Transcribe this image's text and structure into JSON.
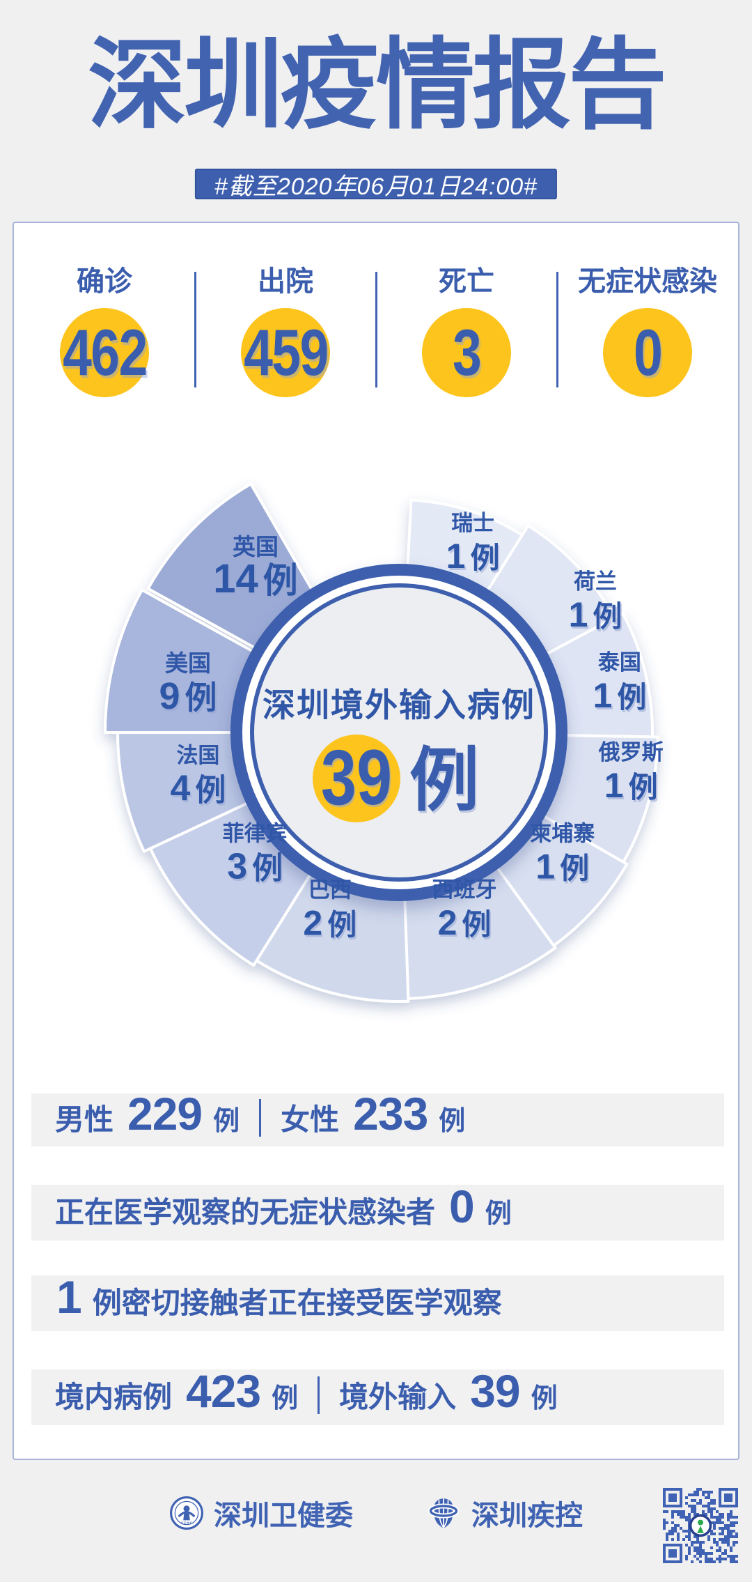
{
  "page_title": "深圳疫情报告",
  "subtitle_badge": "#截至2020年06月01日24:00#",
  "colors": {
    "brand_blue": "#3d5fae",
    "number_blue": "#3a5dad",
    "accent_yellow": "#fcc41d",
    "card_border": "#a9b4d8",
    "page_bg": "#f0f0f1",
    "row_bg": "#f1f1f2",
    "slice_label_blue": "#2f56a7",
    "qr_blue": "#3f62b5"
  },
  "summary_stats": [
    {
      "label": "确诊",
      "value": "462"
    },
    {
      "label": "出院",
      "value": "459"
    },
    {
      "label": "死亡",
      "value": "3"
    },
    {
      "label": "无症状感染",
      "value": "0"
    }
  ],
  "chart_data": {
    "type": "pie",
    "title": "深圳境外输入病例",
    "total": {
      "value": "39",
      "unit": "例"
    },
    "unit": "例",
    "legend_position": "labels-on-slices",
    "slices": [
      {
        "label": "瑞士",
        "value": 1,
        "color": "#e4e9f6",
        "start": 3,
        "end": 32,
        "r": 334,
        "la": 21.3,
        "lr": 292,
        "vs": 50,
        "ns": 31,
        "explode": 0
      },
      {
        "label": "荷兰",
        "value": 1,
        "color": "#e1e6f4",
        "start": 32,
        "end": 62,
        "r": 350,
        "la": 56.3,
        "lr": 339,
        "vs": 50,
        "ns": 31,
        "explode": 0
      },
      {
        "label": "泰国",
        "value": 1,
        "color": "#dee4f3",
        "start": 62,
        "end": 91,
        "r": 364,
        "la": 77.2,
        "lr": 325,
        "vs": 50,
        "ns": 31,
        "explode": 0
      },
      {
        "label": "俄罗斯",
        "value": 1,
        "color": "#dbe1f1",
        "start": 91,
        "end": 120,
        "r": 372,
        "la": 99.7,
        "lr": 338,
        "vs": 50,
        "ns": 31,
        "explode": 0
      },
      {
        "label": "柬埔寨",
        "value": 1,
        "color": "#d8dff0",
        "start": 120,
        "end": 144,
        "r": 378,
        "la": 126.5,
        "lr": 292,
        "vs": 50,
        "ns": 31,
        "explode": 0
      },
      {
        "label": "西班牙",
        "value": 2,
        "color": "#d4dcee",
        "start": 144,
        "end": 178,
        "r": 382,
        "la": 159.7,
        "lr": 271,
        "vs": 50,
        "ns": 31,
        "explode": 0
      },
      {
        "label": "巴西",
        "value": 2,
        "color": "#d0d8ec",
        "start": 178,
        "end": 212,
        "r": 386,
        "la": 201.3,
        "lr": 273,
        "vs": 50,
        "ns": 31,
        "explode": 0
      },
      {
        "label": "菲律宾",
        "value": 3,
        "color": "#c6cfe9",
        "start": 212,
        "end": 245,
        "r": 394,
        "la": 230,
        "lr": 270,
        "vs": 52,
        "ns": 31,
        "explode": 0
      },
      {
        "label": "法国",
        "value": 4,
        "color": "#bbc6e4",
        "start": 245,
        "end": 270,
        "r": 404,
        "la": 258,
        "lr": 295,
        "vs": 52,
        "ns": 31,
        "explode": 0
      },
      {
        "label": "美国",
        "value": 9,
        "color": "#a8b5dc",
        "start": 270,
        "end": 299,
        "r": 422,
        "la": 283,
        "lr": 311,
        "vs": 54,
        "ns": 33,
        "explode": 0
      },
      {
        "label": "英国",
        "value": 14,
        "color": "#9cabd6",
        "start": 299,
        "end": 330,
        "r": 394,
        "la": 319,
        "lr": 314,
        "vs": 58,
        "ns": 33,
        "explode": 22
      }
    ]
  },
  "detail_rows": [
    {
      "segments": [
        {
          "k": "label",
          "t": "男性"
        },
        {
          "k": "num",
          "t": "229"
        },
        {
          "k": "suffix",
          "t": "例"
        },
        {
          "k": "sep"
        },
        {
          "k": "label",
          "t": "女性"
        },
        {
          "k": "num",
          "t": "233"
        },
        {
          "k": "suffix",
          "t": "例"
        }
      ]
    },
    {
      "segments": [
        {
          "k": "label",
          "t": "正在医学观察的无症状感染者"
        },
        {
          "k": "num",
          "t": "0"
        },
        {
          "k": "suffix",
          "t": "例"
        }
      ]
    },
    {
      "segments": [
        {
          "k": "num",
          "t": "1"
        },
        {
          "k": "label",
          "t": "例密切接触者正在接受医学观察"
        }
      ]
    },
    {
      "segments": [
        {
          "k": "label",
          "t": "境内病例"
        },
        {
          "k": "num",
          "t": "423"
        },
        {
          "k": "suffix",
          "t": "例"
        },
        {
          "k": "sep"
        },
        {
          "k": "label",
          "t": "境外输入"
        },
        {
          "k": "num",
          "t": "39"
        },
        {
          "k": "suffix",
          "t": "例"
        }
      ]
    }
  ],
  "footer": {
    "orgs": [
      {
        "label": "深圳卫健委",
        "icon": "shenzhen-health-commission-logo"
      },
      {
        "label": "深圳疾控",
        "icon": "shenzhen-cdc-logo"
      }
    ],
    "qr": "qr-code"
  }
}
